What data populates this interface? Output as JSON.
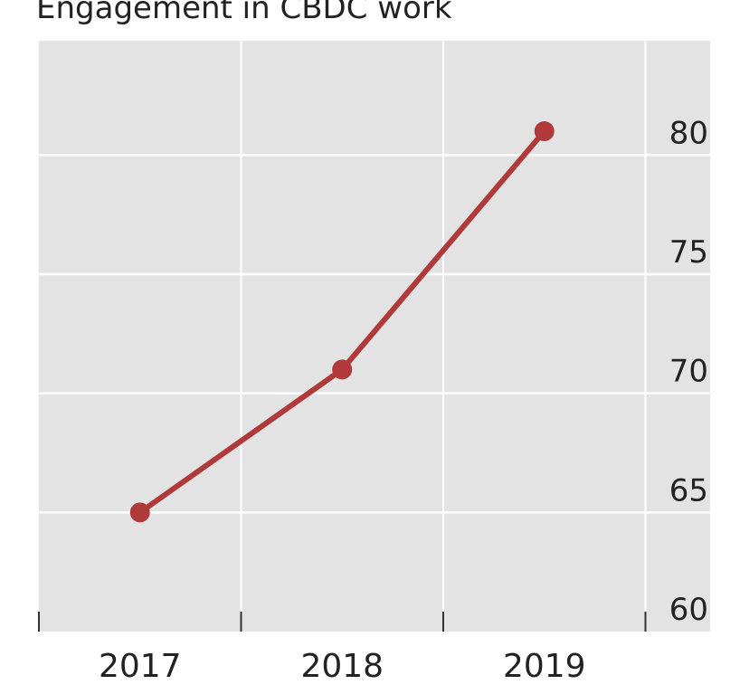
{
  "chart_data": {
    "type": "line",
    "title": "Engagement in CBDC work",
    "categories": [
      "2017",
      "2018",
      "2019"
    ],
    "series": [
      {
        "name": "Engagement",
        "color": "#b03a3a",
        "values": [
          65,
          71,
          81
        ]
      }
    ],
    "ylim": [
      60,
      84.8
    ],
    "yticks": [
      60,
      65,
      70,
      75,
      80
    ],
    "grid": true
  }
}
